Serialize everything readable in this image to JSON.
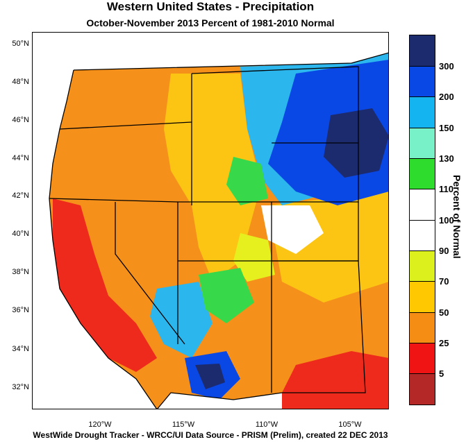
{
  "title": "Western United States - Precipitation",
  "subtitle": "October-November 2013  Percent of 1981-2010 Normal",
  "footer": "WestWide Drought Tracker - WRCC/UI  Data Source - PRISM (Prelim), created 22 DEC 2013",
  "lat_labels": [
    "50°N",
    "48°N",
    "46°N",
    "44°N",
    "42°N",
    "40°N",
    "38°N",
    "36°N",
    "34°N",
    "32°N"
  ],
  "lon_labels": [
    "120°W",
    "115°W",
    "110°W",
    "105°W"
  ],
  "legend": {
    "title": "Percent of Normal",
    "ticks": [
      "300",
      "200",
      "150",
      "130",
      "110",
      "100",
      "90",
      "70",
      "50",
      "25",
      "5"
    ],
    "colors": [
      "#1c2a6e",
      "#0a48e6",
      "#14b4f0",
      "#78f0c8",
      "#2ddc2d",
      "#ffffff",
      "#ffffff",
      "#dcf01e",
      "#ffc800",
      "#f58c14",
      "#f01414",
      "#b42828"
    ]
  },
  "colors": {
    "dry_red": "#ee2a1c",
    "orange": "#f5901a",
    "yellow_orange": "#fcc514",
    "yellow": "#e6f01e",
    "green": "#37d94a",
    "light_blue": "#2cb6ee",
    "blue": "#0a48e6",
    "dark_blue": "#1c2a6e"
  }
}
